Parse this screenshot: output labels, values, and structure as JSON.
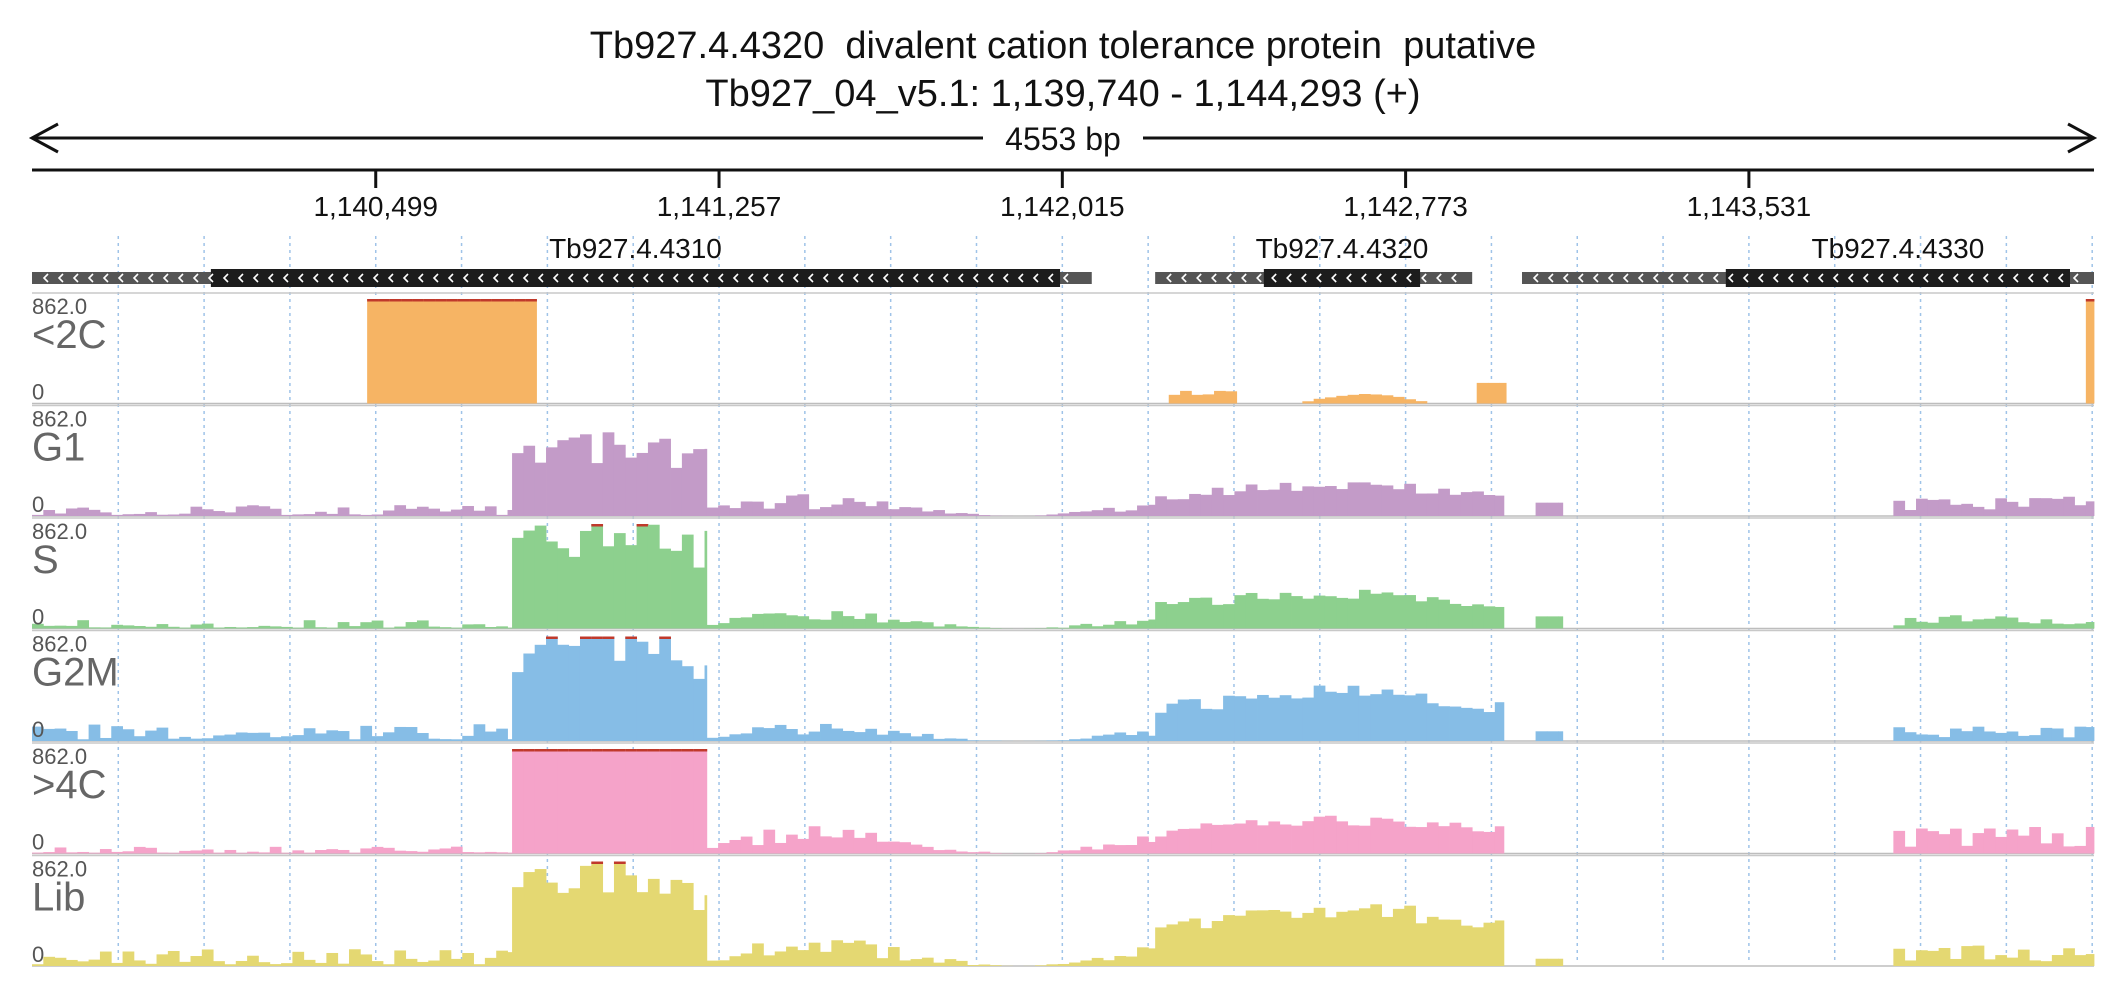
{
  "header": {
    "title": "Tb927.4.4320  divalent cation tolerance protein  putative",
    "subtitle": "Tb927_04_v5.1: 1,139,740 - 1,144,293 (+)",
    "span_label": "4553 bp"
  },
  "chart_data": {
    "type": "area",
    "x_range": [
      1139740,
      1144293
    ],
    "ticks": [
      {
        "value": 1140499,
        "label": "1,140,499"
      },
      {
        "value": 1141257,
        "label": "1,141,257"
      },
      {
        "value": 1142015,
        "label": "1,142,015"
      },
      {
        "value": 1142773,
        "label": "1,142,773"
      },
      {
        "value": 1143531,
        "label": "1,143,531"
      }
    ],
    "genes": [
      {
        "name": "Tb927.4.4310",
        "start": 1139740,
        "end": 1142080,
        "cds_start": 1140135,
        "cds_end": 1142010,
        "strand": "-"
      },
      {
        "name": "Tb927.4.4320",
        "start": 1142220,
        "end": 1142920,
        "cds_start": 1142460,
        "cds_end": 1142805,
        "strand": "-"
      },
      {
        "name": "Tb927.4.4330",
        "start": 1143030,
        "end": 1144293,
        "cds_start": 1143480,
        "cds_end": 1144240,
        "strand": "-"
      }
    ],
    "ymax_label": "862.0",
    "ymin_label": "0",
    "ylim": [
      0,
      862
    ],
    "bin_width_bp": 25,
    "tracks": [
      {
        "name": "<2C",
        "color": "#f6b464",
        "segments": [
          {
            "x": [
              1140480,
              1140854
            ],
            "kind": "saturated"
          },
          {
            "x": [
              1142250,
              1142400
            ],
            "kind": "low",
            "level": 120
          },
          {
            "x": [
              1142520,
              1142820
            ],
            "kind": "hump",
            "level": 80
          },
          {
            "x": [
              1142930,
              1142995
            ],
            "kind": "flat",
            "level": 170
          },
          {
            "x": [
              1144275,
              1144293
            ],
            "kind": "flat",
            "level": 862
          }
        ]
      },
      {
        "name": "G1",
        "color": "#c39bc8",
        "segments": [
          {
            "x": [
              1139740,
              1140800
            ],
            "kind": "noise",
            "level": 90
          },
          {
            "x": [
              1140800,
              1141230
            ],
            "kind": "high",
            "level": 580
          },
          {
            "x": [
              1141230,
              1142220
            ],
            "kind": "mid",
            "level": 220
          },
          {
            "x": [
              1142220,
              1142990
            ],
            "kind": "gene",
            "level": 260
          },
          {
            "x": [
              1143060,
              1143120
            ],
            "kind": "flat",
            "level": 110
          },
          {
            "x": [
              1143850,
              1144293
            ],
            "kind": "tail",
            "level": 160
          }
        ]
      },
      {
        "name": "S",
        "color": "#8dd08e",
        "segments": [
          {
            "x": [
              1139740,
              1140800
            ],
            "kind": "noise",
            "level": 70
          },
          {
            "x": [
              1140800,
              1141230
            ],
            "kind": "high",
            "level": 820
          },
          {
            "x": [
              1141230,
              1142220
            ],
            "kind": "mid",
            "level": 200
          },
          {
            "x": [
              1142220,
              1142990
            ],
            "kind": "gene",
            "level": 300
          },
          {
            "x": [
              1143060,
              1143120
            ],
            "kind": "flat",
            "level": 100
          },
          {
            "x": [
              1143850,
              1144293
            ],
            "kind": "tail",
            "level": 110
          }
        ]
      },
      {
        "name": "G2M",
        "color": "#86bde6",
        "segments": [
          {
            "x": [
              1139740,
              1140800
            ],
            "kind": "noise",
            "level": 140
          },
          {
            "x": [
              1140800,
              1141230
            ],
            "kind": "high",
            "level": 830
          },
          {
            "x": [
              1141230,
              1142220
            ],
            "kind": "mid",
            "level": 170
          },
          {
            "x": [
              1142220,
              1142990
            ],
            "kind": "gene",
            "level": 420
          },
          {
            "x": [
              1143060,
              1143120
            ],
            "kind": "flat",
            "level": 80
          },
          {
            "x": [
              1143850,
              1144293
            ],
            "kind": "tail",
            "level": 120
          }
        ]
      },
      {
        "name": ">4C",
        "color": "#f5a3c9",
        "segments": [
          {
            "x": [
              1139740,
              1140800
            ],
            "kind": "noise",
            "level": 60
          },
          {
            "x": [
              1140800,
              1141230
            ],
            "kind": "saturated"
          },
          {
            "x": [
              1141230,
              1142220
            ],
            "kind": "mid",
            "level": 270
          },
          {
            "x": [
              1142220,
              1142990
            ],
            "kind": "gene",
            "level": 290
          },
          {
            "x": [
              1143850,
              1144293
            ],
            "kind": "tail",
            "level": 230
          }
        ]
      },
      {
        "name": "Lib",
        "color": "#e4d872",
        "segments": [
          {
            "x": [
              1139740,
              1140800
            ],
            "kind": "noise",
            "level": 140
          },
          {
            "x": [
              1140800,
              1141230
            ],
            "kind": "high",
            "level": 760
          },
          {
            "x": [
              1141230,
              1142220
            ],
            "kind": "mid",
            "level": 280
          },
          {
            "x": [
              1142220,
              1142990
            ],
            "kind": "gene",
            "level": 500
          },
          {
            "x": [
              1143060,
              1143120
            ],
            "kind": "flat",
            "level": 60
          },
          {
            "x": [
              1143850,
              1144293
            ],
            "kind": "tail",
            "level": 180
          }
        ]
      }
    ]
  }
}
